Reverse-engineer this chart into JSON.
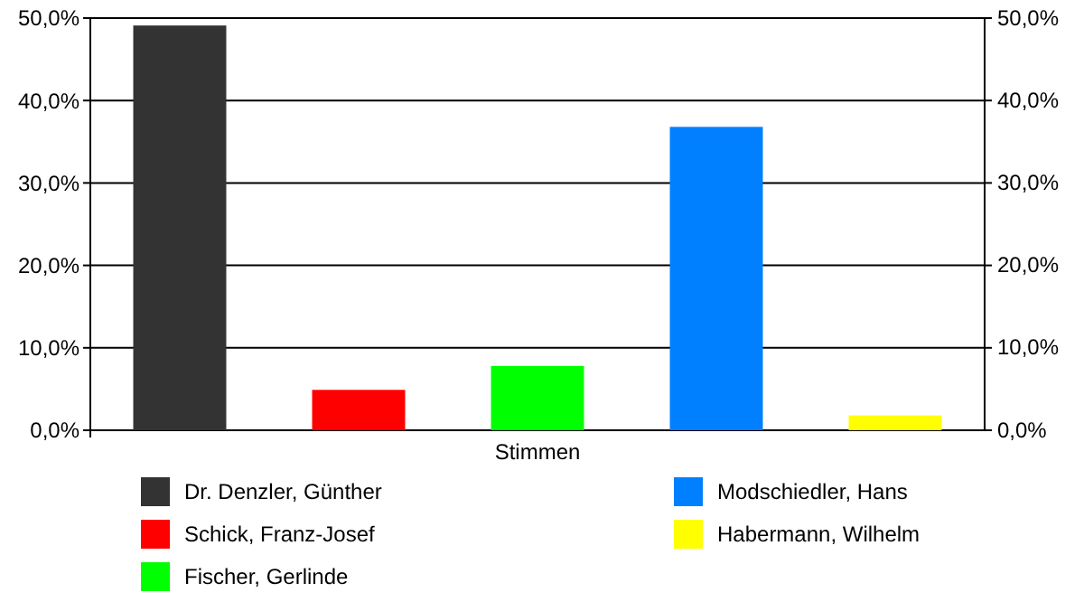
{
  "chart_data": {
    "type": "bar",
    "categories": [
      "Stimmen"
    ],
    "series": [
      {
        "name": "Dr. Denzler, Günther",
        "color": "#333333",
        "values": [
          49.1
        ]
      },
      {
        "name": "Schick, Franz-Josef",
        "color": "#ff0000",
        "values": [
          4.9
        ]
      },
      {
        "name": "Fischer, Gerlinde",
        "color": "#00ff00",
        "values": [
          7.8
        ]
      },
      {
        "name": "Modschiedler, Hans",
        "color": "#0080ff",
        "values": [
          36.8
        ]
      },
      {
        "name": "Habermann, Wilhelm",
        "color": "#ffff00",
        "values": [
          1.8
        ]
      }
    ],
    "ylim": [
      0,
      50
    ],
    "yticks": [
      {
        "value": 0,
        "label": "0,0%"
      },
      {
        "value": 10,
        "label": "10,0%"
      },
      {
        "value": 20,
        "label": "20,0%"
      },
      {
        "value": 30,
        "label": "30,0%"
      },
      {
        "value": 40,
        "label": "40,0%"
      },
      {
        "value": 50,
        "label": "50,0%"
      }
    ],
    "grid": "y",
    "legend": "bottom"
  }
}
